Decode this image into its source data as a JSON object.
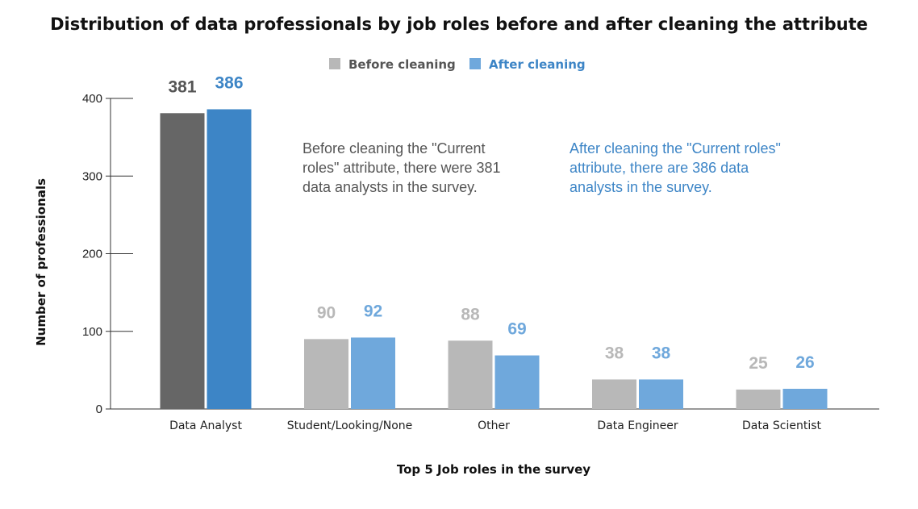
{
  "chart_data": {
    "type": "bar",
    "title": "Distribution of data professionals by job roles before and after cleaning the attribute",
    "xlabel": "Top 5 Job roles in the survey",
    "ylabel": "Number of professionals",
    "categories": [
      "Data Analyst",
      "Student/Looking/None",
      "Other",
      "Data Engineer",
      "Data Scientist"
    ],
    "series": [
      {
        "name": "Before cleaning",
        "values": [
          381,
          90,
          88,
          38,
          25
        ]
      },
      {
        "name": "After cleaning",
        "values": [
          386,
          92,
          69,
          38,
          26
        ]
      }
    ],
    "ylim": [
      0,
      400
    ],
    "yticks": [
      0,
      100,
      200,
      300,
      400
    ],
    "grid": false,
    "legend": "top-center",
    "annotations": [
      {
        "text": [
          "Before cleaning the \"Current",
          "roles\" attribute, there were 381",
          "data analysts in the survey."
        ]
      },
      {
        "text": [
          "After cleaning the \"Current roles\"",
          "attribute, there are 386 data",
          "analysts in the survey."
        ]
      }
    ],
    "colors": {
      "before": "#b8b8b8",
      "after": "#6fa8dc",
      "before_highlight": "#666666",
      "after_highlight": "#3d85c6",
      "before_text": "#b8b8b8",
      "after_text": "#6fa8dc",
      "before_highlight_text": "#555555",
      "after_highlight_text": "#3d85c6",
      "anno_before": "#555555",
      "anno_after": "#3d85c6"
    }
  }
}
